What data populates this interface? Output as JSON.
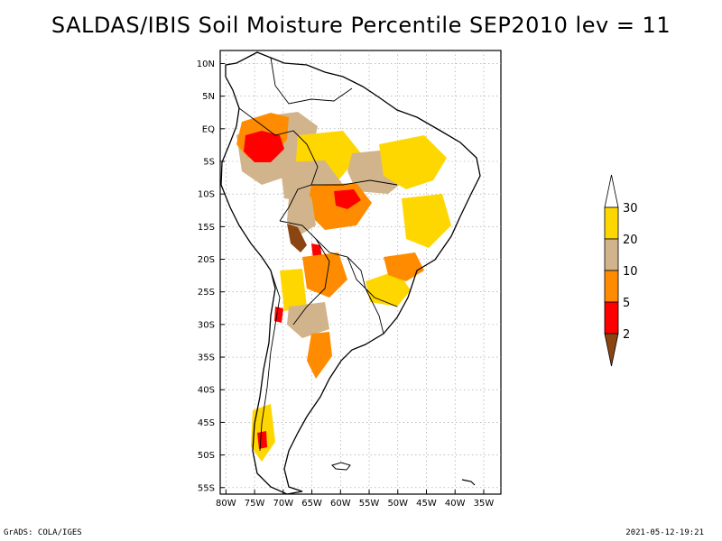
{
  "title": "SALDAS/IBIS Soil Moisture Percentile SEP2010 lev = 11",
  "lat_labels": [
    "10N",
    "5N",
    "EQ",
    "5S",
    "10S",
    "15S",
    "20S",
    "25S",
    "30S",
    "35S",
    "40S",
    "45S",
    "50S",
    "55S"
  ],
  "lon_labels": [
    "80W",
    "75W",
    "70W",
    "65W",
    "60W",
    "55W",
    "50W",
    "45W",
    "40W",
    "35W"
  ],
  "colorbar": {
    "levels": [
      "2",
      "5",
      "10",
      "20",
      "30"
    ],
    "colors": [
      "#8B4513",
      "#FF0000",
      "#FF8C00",
      "#D2B48C",
      "#FFD700",
      "#FFFFFF"
    ]
  },
  "palette": {
    "very_dry": "#8B4513",
    "dry": "#FF0000",
    "moderate": "#FF8C00",
    "tan": "#D2B48C",
    "yellow": "#FFD700",
    "background": "#FFFFFF",
    "grid": "#999999"
  },
  "footer": {
    "left": "GrADS: COLA/IGES",
    "right": "2021-05-12-19:21"
  }
}
